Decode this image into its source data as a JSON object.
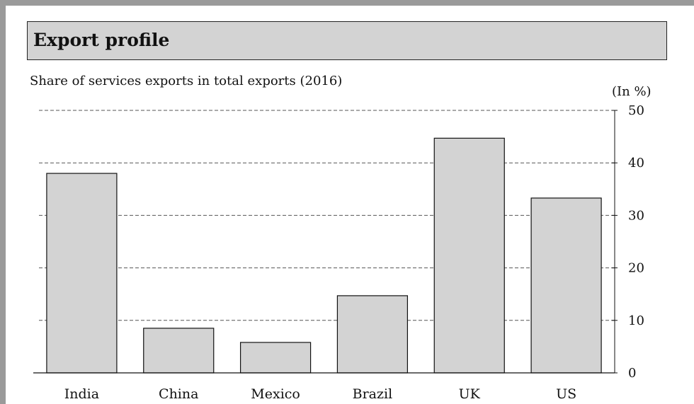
{
  "header": {
    "title": "Export profile"
  },
  "chart_data": {
    "type": "bar",
    "title": "Share of services exports in total exports (2016)",
    "unit_label": "(In %)",
    "categories": [
      "India",
      "China",
      "Mexico",
      "Brazil",
      "UK",
      "US"
    ],
    "values": [
      38,
      8.5,
      5.8,
      14.7,
      44.7,
      33.3
    ],
    "xlabel": "",
    "ylabel": "",
    "ylim": [
      0,
      50
    ],
    "yticks": [
      0,
      10,
      20,
      30,
      40,
      50
    ],
    "y_axis_side": "right",
    "grid": true,
    "bar_color": "#d3d3d3"
  }
}
